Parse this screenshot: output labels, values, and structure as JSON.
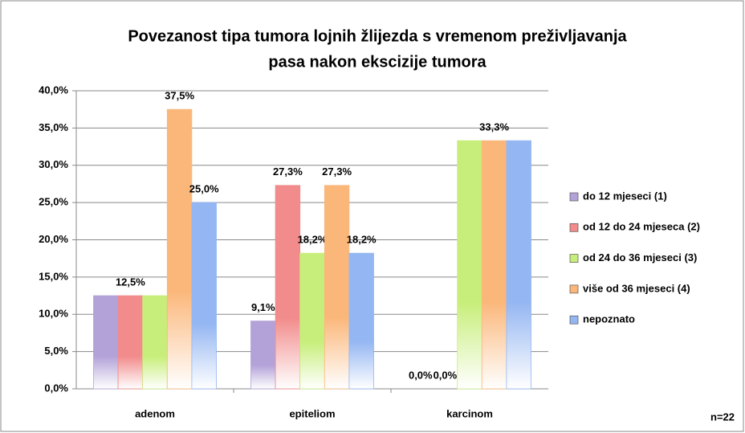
{
  "chart_data": {
    "type": "bar",
    "title": [
      "Povezanost tipa tumora lojnih žlijezda s vremenom preživljavanja",
      "pasa nakon ekscizije tumora"
    ],
    "categories": [
      "adenom",
      "epiteliom",
      "karcinom"
    ],
    "series": [
      {
        "name": "do 12 mjeseci (1)",
        "color": "#b3a2d8",
        "values": [
          12.5,
          9.1,
          0
        ],
        "value_labels": [
          null,
          "9,1%",
          "0,0%"
        ]
      },
      {
        "name": "od 12 do 24 mjeseca (2)",
        "color": "#f28b8b",
        "values": [
          12.5,
          27.3,
          0
        ],
        "value_labels": [
          "12,5%",
          "27,3%",
          "0,0%"
        ]
      },
      {
        "name": "od 24 do 36 mjeseci (3)",
        "color": "#c7ee7a",
        "values": [
          12.5,
          18.2,
          33.3
        ],
        "value_labels": [
          null,
          "18,2%",
          null
        ]
      },
      {
        "name": "više od 36 mjeseci (4)",
        "color": "#fbb77a",
        "values": [
          37.5,
          27.3,
          33.3
        ],
        "value_labels": [
          "37,5%",
          "27,3%",
          "33,3%"
        ]
      },
      {
        "name": "nepoznato",
        "color": "#94b6f2",
        "values": [
          25.0,
          18.2,
          33.3
        ],
        "value_labels": [
          "25,0%",
          "18,2%",
          null
        ]
      }
    ],
    "ylim": [
      0,
      40
    ],
    "yticks": [
      {
        "value": 0,
        "label": "0,0%"
      },
      {
        "value": 5,
        "label": "5,0%"
      },
      {
        "value": 10,
        "label": "10,0%"
      },
      {
        "value": 15,
        "label": "15,0%"
      },
      {
        "value": 20,
        "label": "20,0%"
      },
      {
        "value": 25,
        "label": "25,0%"
      },
      {
        "value": 30,
        "label": "30,0%"
      },
      {
        "value": 35,
        "label": "35,0%"
      },
      {
        "value": 40,
        "label": "40,0%"
      }
    ],
    "grid": true,
    "legend": "right",
    "annotation": "n=22"
  }
}
